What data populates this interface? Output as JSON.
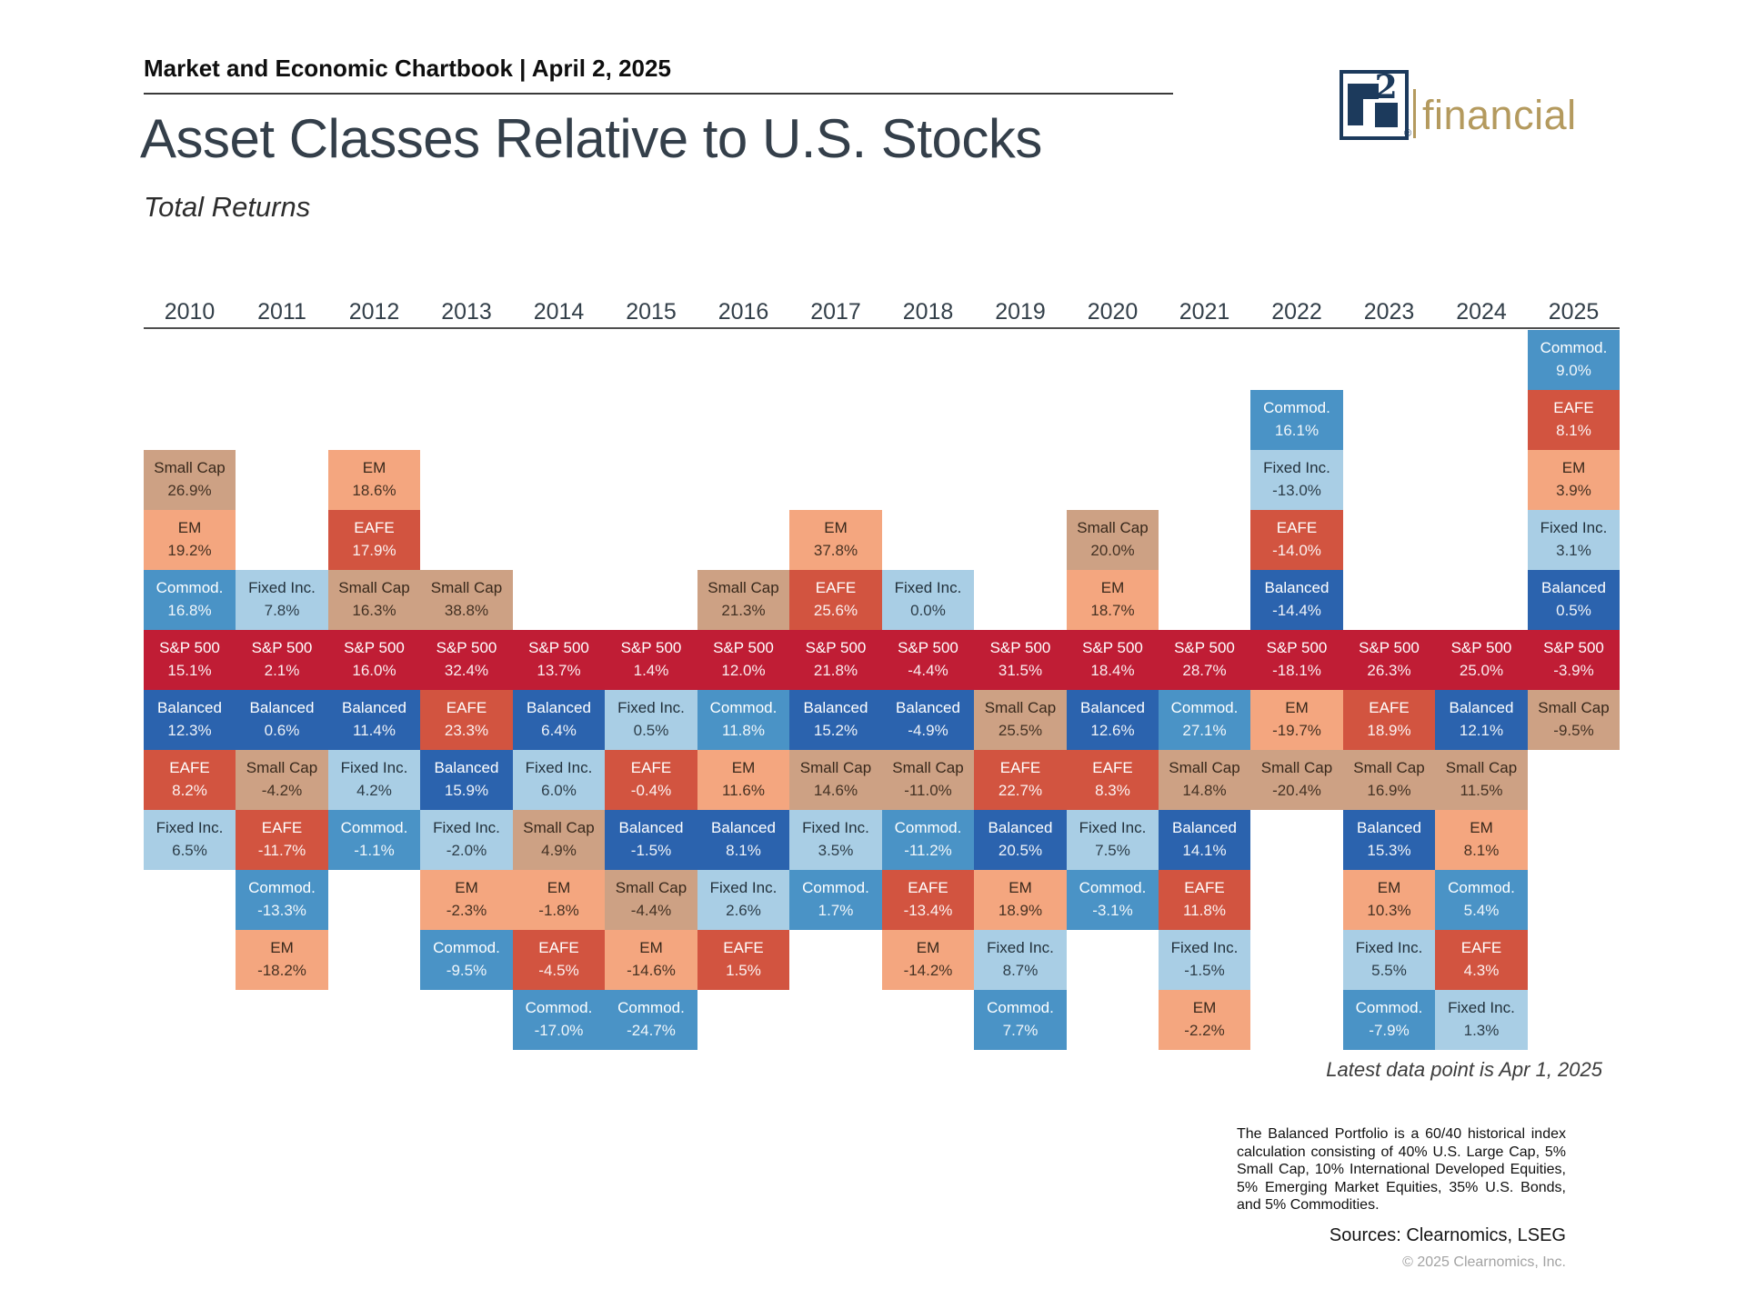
{
  "page": {
    "kicker": "Market and Economic Chartbook | April 2, 2025",
    "title": "Asset Classes Relative to U.S. Stocks",
    "subtitle": "Total Returns"
  },
  "logo": {
    "superscript": "2",
    "registered": "®",
    "wordmark": "financial",
    "navy": "#1c3a5c",
    "gold": "#b49a5e"
  },
  "chart_data": {
    "type": "heatmap",
    "title": "Asset Classes Relative to U.S. Stocks",
    "subtitle": "Total Returns",
    "unit": "% total return",
    "anchor_series": "S&P 500",
    "legend_position": "none",
    "years": [
      2010,
      2011,
      2012,
      2013,
      2014,
      2015,
      2016,
      2017,
      2018,
      2019,
      2020,
      2021,
      2022,
      2023,
      2024,
      2025
    ],
    "asset_styles": {
      "S&P 500": {
        "bg": "#c01d35",
        "text": "#ffffff"
      },
      "Balanced": {
        "bg": "#2b63ae",
        "text": "#ffffff"
      },
      "EAFE": {
        "bg": "#d25440",
        "text": "#ffffff"
      },
      "Commod.": {
        "bg": "#4a93c6",
        "text": "#ffffff"
      },
      "Fixed Inc.": {
        "bg": "#a9cee5",
        "text": "#22313c"
      },
      "EM": {
        "bg": "#f4a67f",
        "text": "#38281b"
      },
      "Small Cap": {
        "bg": "#cda184",
        "text": "#38281b"
      }
    },
    "columns": [
      {
        "year": "2010",
        "cells": [
          {
            "asset": "Small Cap",
            "value": 26.9
          },
          {
            "asset": "EM",
            "value": 19.2
          },
          {
            "asset": "Commod.",
            "value": 16.8
          },
          {
            "asset": "S&P 500",
            "value": 15.1
          },
          {
            "asset": "Balanced",
            "value": 12.3
          },
          {
            "asset": "EAFE",
            "value": 8.2
          },
          {
            "asset": "Fixed Inc.",
            "value": 6.5
          }
        ]
      },
      {
        "year": "2011",
        "cells": [
          {
            "asset": "Fixed Inc.",
            "value": 7.8
          },
          {
            "asset": "S&P 500",
            "value": 2.1
          },
          {
            "asset": "Balanced",
            "value": 0.6
          },
          {
            "asset": "Small Cap",
            "value": -4.2
          },
          {
            "asset": "EAFE",
            "value": -11.7
          },
          {
            "asset": "Commod.",
            "value": -13.3
          },
          {
            "asset": "EM",
            "value": -18.2
          }
        ]
      },
      {
        "year": "2012",
        "cells": [
          {
            "asset": "EM",
            "value": 18.6
          },
          {
            "asset": "EAFE",
            "value": 17.9
          },
          {
            "asset": "Small Cap",
            "value": 16.3
          },
          {
            "asset": "S&P 500",
            "value": 16.0
          },
          {
            "asset": "Balanced",
            "value": 11.4
          },
          {
            "asset": "Fixed Inc.",
            "value": 4.2
          },
          {
            "asset": "Commod.",
            "value": -1.1
          }
        ]
      },
      {
        "year": "2013",
        "cells": [
          {
            "asset": "Small Cap",
            "value": 38.8
          },
          {
            "asset": "S&P 500",
            "value": 32.4
          },
          {
            "asset": "EAFE",
            "value": 23.3
          },
          {
            "asset": "Balanced",
            "value": 15.9
          },
          {
            "asset": "Fixed Inc.",
            "value": -2.0
          },
          {
            "asset": "EM",
            "value": -2.3
          },
          {
            "asset": "Commod.",
            "value": -9.5
          }
        ]
      },
      {
        "year": "2014",
        "cells": [
          {
            "asset": "S&P 500",
            "value": 13.7
          },
          {
            "asset": "Balanced",
            "value": 6.4
          },
          {
            "asset": "Fixed Inc.",
            "value": 6.0
          },
          {
            "asset": "Small Cap",
            "value": 4.9
          },
          {
            "asset": "EM",
            "value": -1.8
          },
          {
            "asset": "EAFE",
            "value": -4.5
          },
          {
            "asset": "Commod.",
            "value": -17.0
          }
        ]
      },
      {
        "year": "2015",
        "cells": [
          {
            "asset": "S&P 500",
            "value": 1.4
          },
          {
            "asset": "Fixed Inc.",
            "value": 0.5
          },
          {
            "asset": "EAFE",
            "value": -0.4
          },
          {
            "asset": "Balanced",
            "value": -1.5
          },
          {
            "asset": "Small Cap",
            "value": -4.4
          },
          {
            "asset": "EM",
            "value": -14.6
          },
          {
            "asset": "Commod.",
            "value": -24.7
          }
        ]
      },
      {
        "year": "2016",
        "cells": [
          {
            "asset": "Small Cap",
            "value": 21.3
          },
          {
            "asset": "S&P 500",
            "value": 12.0
          },
          {
            "asset": "Commod.",
            "value": 11.8
          },
          {
            "asset": "EM",
            "value": 11.6
          },
          {
            "asset": "Balanced",
            "value": 8.1
          },
          {
            "asset": "Fixed Inc.",
            "value": 2.6
          },
          {
            "asset": "EAFE",
            "value": 1.5
          }
        ]
      },
      {
        "year": "2017",
        "cells": [
          {
            "asset": "EM",
            "value": 37.8
          },
          {
            "asset": "EAFE",
            "value": 25.6
          },
          {
            "asset": "S&P 500",
            "value": 21.8
          },
          {
            "asset": "Balanced",
            "value": 15.2
          },
          {
            "asset": "Small Cap",
            "value": 14.6
          },
          {
            "asset": "Fixed Inc.",
            "value": 3.5
          },
          {
            "asset": "Commod.",
            "value": 1.7
          }
        ]
      },
      {
        "year": "2018",
        "cells": [
          {
            "asset": "Fixed Inc.",
            "value": 0.0
          },
          {
            "asset": "S&P 500",
            "value": -4.4
          },
          {
            "asset": "Balanced",
            "value": -4.9
          },
          {
            "asset": "Small Cap",
            "value": -11.0
          },
          {
            "asset": "Commod.",
            "value": -11.2
          },
          {
            "asset": "EAFE",
            "value": -13.4
          },
          {
            "asset": "EM",
            "value": -14.2
          }
        ]
      },
      {
        "year": "2019",
        "cells": [
          {
            "asset": "S&P 500",
            "value": 31.5
          },
          {
            "asset": "Small Cap",
            "value": 25.5
          },
          {
            "asset": "EAFE",
            "value": 22.7
          },
          {
            "asset": "Balanced",
            "value": 20.5
          },
          {
            "asset": "EM",
            "value": 18.9
          },
          {
            "asset": "Fixed Inc.",
            "value": 8.7
          },
          {
            "asset": "Commod.",
            "value": 7.7
          }
        ]
      },
      {
        "year": "2020",
        "cells": [
          {
            "asset": "Small Cap",
            "value": 20.0
          },
          {
            "asset": "EM",
            "value": 18.7
          },
          {
            "asset": "S&P 500",
            "value": 18.4
          },
          {
            "asset": "Balanced",
            "value": 12.6
          },
          {
            "asset": "EAFE",
            "value": 8.3
          },
          {
            "asset": "Fixed Inc.",
            "value": 7.5
          },
          {
            "asset": "Commod.",
            "value": -3.1
          }
        ]
      },
      {
        "year": "2021",
        "cells": [
          {
            "asset": "S&P 500",
            "value": 28.7
          },
          {
            "asset": "Commod.",
            "value": 27.1
          },
          {
            "asset": "Small Cap",
            "value": 14.8
          },
          {
            "asset": "Balanced",
            "value": 14.1
          },
          {
            "asset": "EAFE",
            "value": 11.8
          },
          {
            "asset": "Fixed Inc.",
            "value": -1.5
          },
          {
            "asset": "EM",
            "value": -2.2
          }
        ]
      },
      {
        "year": "2022",
        "cells": [
          {
            "asset": "Commod.",
            "value": 16.1
          },
          {
            "asset": "Fixed Inc.",
            "value": -13.0
          },
          {
            "asset": "EAFE",
            "value": -14.0
          },
          {
            "asset": "Balanced",
            "value": -14.4
          },
          {
            "asset": "S&P 500",
            "value": -18.1
          },
          {
            "asset": "EM",
            "value": -19.7
          },
          {
            "asset": "Small Cap",
            "value": -20.4
          }
        ]
      },
      {
        "year": "2023",
        "cells": [
          {
            "asset": "S&P 500",
            "value": 26.3
          },
          {
            "asset": "EAFE",
            "value": 18.9
          },
          {
            "asset": "Small Cap",
            "value": 16.9
          },
          {
            "asset": "Balanced",
            "value": 15.3
          },
          {
            "asset": "EM",
            "value": 10.3
          },
          {
            "asset": "Fixed Inc.",
            "value": 5.5
          },
          {
            "asset": "Commod.",
            "value": -7.9
          }
        ]
      },
      {
        "year": "2024",
        "cells": [
          {
            "asset": "S&P 500",
            "value": 25.0
          },
          {
            "asset": "Balanced",
            "value": 12.1
          },
          {
            "asset": "Small Cap",
            "value": 11.5
          },
          {
            "asset": "EM",
            "value": 8.1
          },
          {
            "asset": "Commod.",
            "value": 5.4
          },
          {
            "asset": "EAFE",
            "value": 4.3
          },
          {
            "asset": "Fixed Inc.",
            "value": 1.3
          }
        ]
      },
      {
        "year": "2025",
        "cells": [
          {
            "asset": "Commod.",
            "value": 9.0
          },
          {
            "asset": "EAFE",
            "value": 8.1
          },
          {
            "asset": "EM",
            "value": 3.9
          },
          {
            "asset": "Fixed Inc.",
            "value": 3.1
          },
          {
            "asset": "Balanced",
            "value": 0.5
          },
          {
            "asset": "S&P 500",
            "value": -3.9
          },
          {
            "asset": "Small Cap",
            "value": -9.5
          }
        ]
      }
    ]
  },
  "footnote": "Latest data point is Apr 1, 2025",
  "footer": {
    "disclosure": "The Balanced Portfolio is a 60/40 historical index calculation consisting of 40% U.S. Large Cap, 5% Small Cap, 10% International Developed Equities, 5% Emerging Market Equities, 35% U.S. Bonds, and 5% Commodities.",
    "sources": "Sources: Clearnomics, LSEG",
    "copyright": "© 2025 Clearnomics, Inc."
  }
}
